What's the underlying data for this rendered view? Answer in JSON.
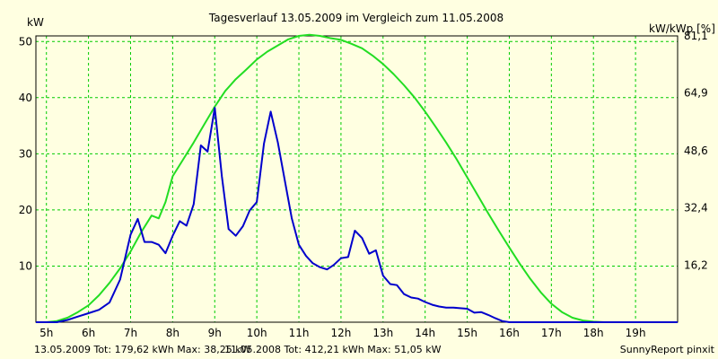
{
  "chart_data": {
    "type": "line",
    "title": "Tagesverlauf 13.05.2009 im Vergleich zum 11.05.2008",
    "ylabel_left": "kW",
    "ylabel_right": "kW/kWp [%]",
    "xlabel": "",
    "xlim": [
      4.75,
      20.0
    ],
    "ylim": [
      0,
      51
    ],
    "y2lim": [
      0,
      81.1
    ],
    "x_ticks": [
      {
        "x": 5,
        "label": "5h"
      },
      {
        "x": 6,
        "label": "6h"
      },
      {
        "x": 7,
        "label": "7h"
      },
      {
        "x": 8,
        "label": "8h"
      },
      {
        "x": 9,
        "label": "9h"
      },
      {
        "x": 10,
        "label": "10h"
      },
      {
        "x": 11,
        "label": "11h"
      },
      {
        "x": 12,
        "label": "12h"
      },
      {
        "x": 13,
        "label": "13h"
      },
      {
        "x": 14,
        "label": "14h"
      },
      {
        "x": 15,
        "label": "15h"
      },
      {
        "x": 16,
        "label": "16h"
      },
      {
        "x": 17,
        "label": "17h"
      },
      {
        "x": 18,
        "label": "18h"
      },
      {
        "x": 19,
        "label": "19h"
      }
    ],
    "y_ticks_left": [
      {
        "y": 10,
        "label": "10"
      },
      {
        "y": 20,
        "label": "20"
      },
      {
        "y": 30,
        "label": "30"
      },
      {
        "y": 40,
        "label": "40"
      },
      {
        "y": 50,
        "label": "50"
      }
    ],
    "y_ticks_right": [
      {
        "y": 16.2,
        "label": "16,2"
      },
      {
        "y": 32.4,
        "label": "32,4"
      },
      {
        "y": 48.6,
        "label": "48,6"
      },
      {
        "y": 64.9,
        "label": "64,9"
      },
      {
        "y": 81.1,
        "label": "81,1"
      }
    ],
    "grid": true,
    "series": [
      {
        "name": "13.05.2009",
        "color": "#0000cc",
        "x": [
          4.75,
          5.0,
          5.25,
          5.5,
          5.75,
          6.0,
          6.25,
          6.5,
          6.75,
          7.0,
          7.17,
          7.33,
          7.5,
          7.67,
          7.83,
          8.0,
          8.17,
          8.33,
          8.5,
          8.67,
          8.83,
          9.0,
          9.17,
          9.33,
          9.5,
          9.67,
          9.83,
          10.0,
          10.17,
          10.33,
          10.5,
          10.67,
          10.83,
          11.0,
          11.17,
          11.33,
          11.5,
          11.67,
          11.83,
          12.0,
          12.17,
          12.33,
          12.5,
          12.67,
          12.83,
          13.0,
          13.17,
          13.33,
          13.5,
          13.67,
          13.83,
          14.0,
          14.17,
          14.33,
          14.5,
          14.67,
          14.83,
          15.0,
          15.17,
          15.33,
          15.5,
          15.67,
          15.83,
          16.0,
          16.25,
          16.5,
          16.75,
          17.0,
          17.25,
          17.5,
          17.75,
          18.0,
          18.25,
          18.5,
          18.75,
          19.0,
          19.25,
          19.5,
          19.75,
          20.0
        ],
        "values": [
          0,
          0,
          0,
          0.4,
          1.0,
          1.6,
          2.2,
          3.5,
          7.6,
          15.6,
          18.4,
          14.3,
          14.3,
          13.8,
          12.3,
          15.4,
          18.0,
          17.2,
          21.0,
          31.5,
          30.4,
          38.2,
          26.0,
          16.6,
          15.4,
          17.1,
          19.9,
          21.4,
          31.8,
          37.5,
          32.0,
          25.0,
          18.5,
          13.8,
          11.8,
          10.5,
          9.8,
          9.4,
          10.2,
          11.4,
          11.6,
          16.3,
          15.0,
          12.2,
          12.8,
          8.3,
          6.8,
          6.6,
          5.0,
          4.4,
          4.2,
          3.6,
          3.1,
          2.8,
          2.6,
          2.6,
          2.5,
          2.4,
          1.7,
          1.8,
          1.3,
          0.7,
          0.2,
          0.0,
          0.0,
          0.0,
          0.0,
          0.0,
          0.0,
          0.0,
          0.0,
          0.0,
          0.0,
          0.0,
          0.0,
          0.0,
          0.0,
          0.0,
          0.0,
          0.0
        ]
      },
      {
        "name": "11.05.2008",
        "color": "#22dd22",
        "x": [
          4.75,
          5.0,
          5.25,
          5.5,
          5.75,
          6.0,
          6.25,
          6.5,
          6.75,
          7.0,
          7.25,
          7.5,
          7.67,
          7.83,
          8.0,
          8.25,
          8.5,
          8.75,
          9.0,
          9.25,
          9.5,
          9.75,
          10.0,
          10.25,
          10.5,
          10.75,
          11.0,
          11.25,
          11.5,
          11.75,
          12.0,
          12.25,
          12.5,
          12.75,
          13.0,
          13.25,
          13.5,
          13.75,
          14.0,
          14.25,
          14.5,
          14.75,
          15.0,
          15.25,
          15.5,
          15.75,
          16.0,
          16.25,
          16.5,
          16.75,
          17.0,
          17.25,
          17.5,
          17.75,
          18.0,
          18.25,
          18.5,
          18.75,
          19.0,
          19.25,
          19.5,
          19.75,
          20.0
        ],
        "values": [
          0,
          0,
          0.2,
          0.8,
          1.8,
          3.0,
          4.8,
          7.0,
          9.6,
          12.6,
          16.0,
          19.0,
          18.5,
          21.4,
          26.0,
          29.0,
          32.0,
          35.2,
          38.4,
          41.2,
          43.3,
          45.0,
          46.8,
          48.2,
          49.3,
          50.4,
          51.0,
          51.2,
          51.0,
          50.6,
          50.3,
          49.6,
          48.8,
          47.5,
          46.0,
          44.2,
          42.2,
          40.0,
          37.5,
          34.8,
          32.0,
          29.0,
          25.8,
          22.6,
          19.4,
          16.3,
          13.3,
          10.4,
          7.7,
          5.3,
          3.3,
          1.8,
          0.8,
          0.3,
          0.1,
          0.0,
          0.0,
          0.0,
          0.0,
          0.0,
          0.0,
          0.0,
          0.0
        ]
      }
    ],
    "legend": {
      "placement": "bottom-left",
      "entries": [
        {
          "text": "13.05.2009 Tot: 179,62 kWh Max: 38,25 kW",
          "color": "#0000cc"
        },
        {
          "text": "11.05.2008 Tot: 412,21 kWh Max: 51,05 kW",
          "color": "#22dd22"
        }
      ]
    },
    "footer_note": "SunnyReport pinxit",
    "colors": {
      "background": "#ffffe1",
      "grid": "#00cc00",
      "axis": "#000000"
    }
  }
}
